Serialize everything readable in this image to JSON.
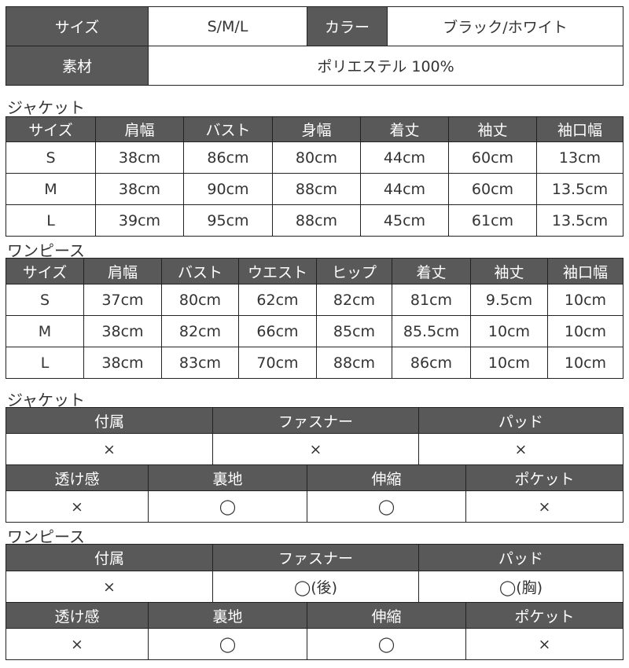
{
  "summary": {
    "size_label": "サイズ",
    "size_value": "S/M/L",
    "color_label": "カラー",
    "color_value": "ブラック/ホワイト",
    "material_label": "素材",
    "material_value": "ポリエステル 100%"
  },
  "jacket_size": {
    "title": "ジャケット",
    "headers": [
      "サイズ",
      "肩幅",
      "バスト",
      "身幅",
      "着丈",
      "袖丈",
      "袖口幅"
    ],
    "rows": [
      [
        "S",
        "38cm",
        "86cm",
        "80cm",
        "44cm",
        "60cm",
        "13cm"
      ],
      [
        "M",
        "38cm",
        "90cm",
        "88cm",
        "44cm",
        "60cm",
        "13.5cm"
      ],
      [
        "L",
        "39cm",
        "95cm",
        "88cm",
        "45cm",
        "61cm",
        "13.5cm"
      ]
    ]
  },
  "onepiece_size": {
    "title": "ワンピース",
    "headers": [
      "サイズ",
      "肩幅",
      "バスト",
      "ウエスト",
      "ヒップ",
      "着丈",
      "袖丈",
      "袖口幅"
    ],
    "rows": [
      [
        "S",
        "37cm",
        "80cm",
        "62cm",
        "82cm",
        "81cm",
        "9.5cm",
        "10cm"
      ],
      [
        "M",
        "38cm",
        "82cm",
        "66cm",
        "85cm",
        "85.5cm",
        "10cm",
        "10cm"
      ],
      [
        "L",
        "38cm",
        "83cm",
        "70cm",
        "88cm",
        "86cm",
        "10cm",
        "10cm"
      ]
    ]
  },
  "jacket_spec": {
    "title": "ジャケット",
    "headers1": [
      "付属",
      "ファスナー",
      "パッド"
    ],
    "values1": [
      "×",
      "×",
      "×"
    ],
    "headers2": [
      "透け感",
      "裏地",
      "伸縮",
      "ポケット"
    ],
    "values2": [
      "×",
      "◯",
      "◯",
      "×"
    ]
  },
  "onepiece_spec": {
    "title": "ワンピース",
    "headers1": [
      "付属",
      "ファスナー",
      "パッド"
    ],
    "values1": [
      "×",
      "◯(後)",
      "◯(胸)"
    ],
    "headers2": [
      "透け感",
      "裏地",
      "伸縮",
      "ポケット"
    ],
    "values2": [
      "×",
      "◯",
      "◯",
      "×"
    ]
  },
  "colors": {
    "header_bg": "#595959",
    "header_text": "#ffffff",
    "border": "#222222"
  }
}
